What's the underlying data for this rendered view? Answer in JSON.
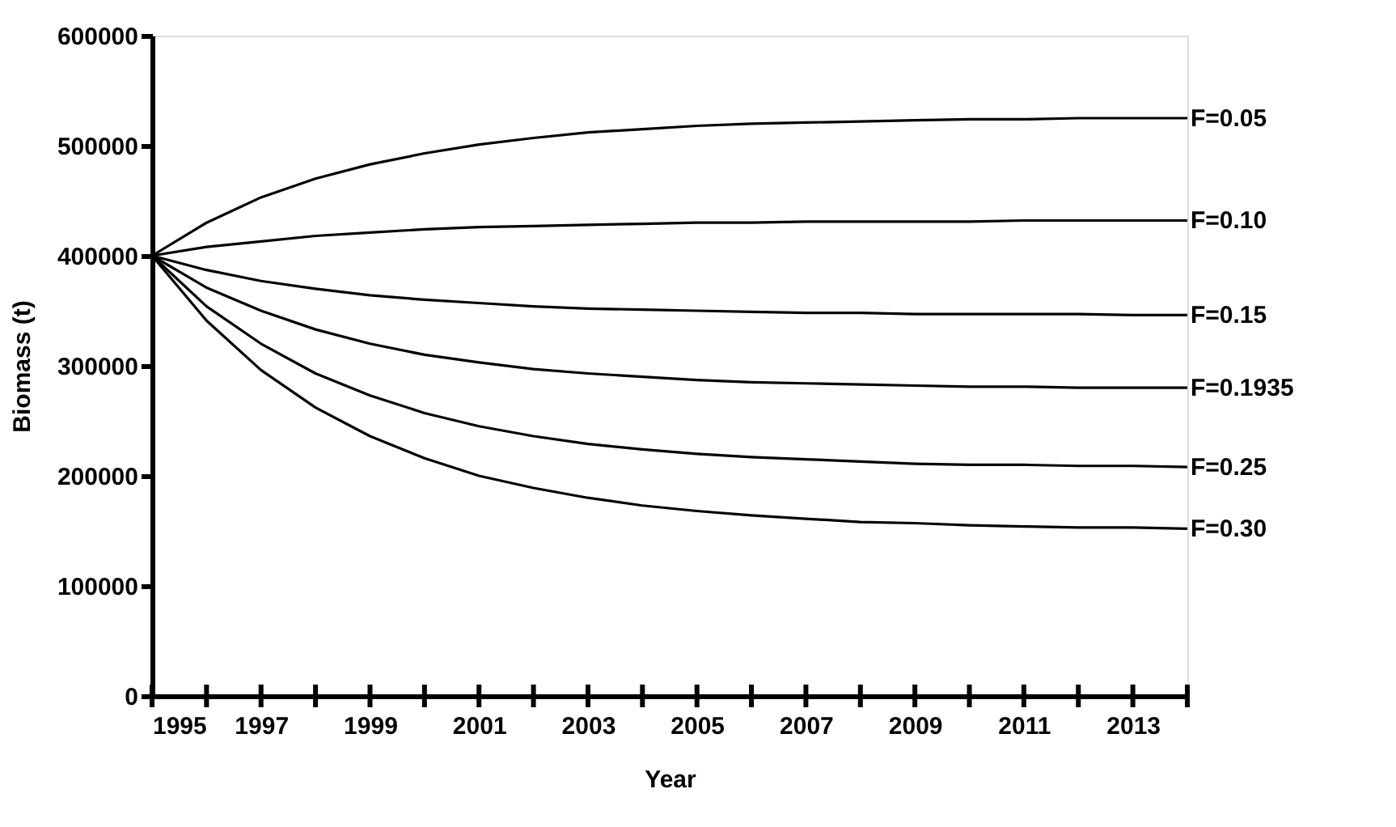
{
  "chart_data": {
    "type": "line",
    "xlabel": "Year",
    "ylabel": "Biomass (t)",
    "x": [
      1995,
      1996,
      1997,
      1998,
      1999,
      2000,
      2001,
      2002,
      2003,
      2004,
      2005,
      2006,
      2007,
      2008,
      2009,
      2010,
      2011,
      2012,
      2013,
      2014
    ],
    "xlim": [
      1995,
      2014
    ],
    "xticks": [
      1995,
      {
        "value": 1996,
        "label": null
      },
      1997,
      {
        "value": 1998,
        "label": null
      },
      1999,
      {
        "value": 2000,
        "label": null
      },
      2001,
      {
        "value": 2002,
        "label": null
      },
      2003,
      {
        "value": 2004,
        "label": null
      },
      2005,
      {
        "value": 2006,
        "label": null
      },
      2007,
      {
        "value": 2008,
        "label": null
      },
      2009,
      {
        "value": 2010,
        "label": null
      },
      2011,
      {
        "value": 2012,
        "label": null
      },
      2013,
      {
        "value": 2014,
        "label": null
      }
    ],
    "ylim": [
      0,
      600000
    ],
    "yticks": [
      0,
      100000,
      200000,
      300000,
      400000,
      500000,
      600000
    ],
    "grid": false,
    "legend": false,
    "marker": "none",
    "line_style": "solid",
    "series": [
      {
        "name": "F=0.05",
        "color": "#000000",
        "values": [
          400000,
          430000,
          453000,
          470000,
          483000,
          493000,
          501000,
          507000,
          512000,
          515000,
          518000,
          520000,
          521000,
          522000,
          523000,
          524000,
          524000,
          525000,
          525000,
          525000
        ]
      },
      {
        "name": "F=0.10",
        "color": "#000000",
        "values": [
          400000,
          408000,
          413000,
          418000,
          421000,
          424000,
          426000,
          427000,
          428000,
          429000,
          430000,
          430000,
          431000,
          431000,
          431000,
          431000,
          432000,
          432000,
          432000,
          432000
        ]
      },
      {
        "name": "F=0.15",
        "color": "#000000",
        "values": [
          400000,
          387000,
          377000,
          370000,
          364000,
          360000,
          357000,
          354000,
          352000,
          351000,
          350000,
          349000,
          348000,
          348000,
          347000,
          347000,
          347000,
          347000,
          346000,
          346000
        ]
      },
      {
        "name": "F=0.1935",
        "color": "#000000",
        "values": [
          400000,
          371000,
          350000,
          333000,
          320000,
          310000,
          303000,
          297000,
          293000,
          290000,
          287000,
          285000,
          284000,
          283000,
          282000,
          281000,
          281000,
          280000,
          280000,
          280000
        ]
      },
      {
        "name": "F=0.25",
        "color": "#000000",
        "values": [
          400000,
          354000,
          320000,
          293000,
          273000,
          257000,
          245000,
          236000,
          229000,
          224000,
          220000,
          217000,
          215000,
          213000,
          211000,
          210000,
          210000,
          209000,
          209000,
          208000
        ]
      },
      {
        "name": "F=0.30",
        "color": "#000000",
        "values": [
          400000,
          341000,
          296000,
          262000,
          236000,
          216000,
          200000,
          189000,
          180000,
          173000,
          168000,
          164000,
          161000,
          158000,
          157000,
          155000,
          154000,
          153000,
          153000,
          152000
        ]
      }
    ]
  }
}
